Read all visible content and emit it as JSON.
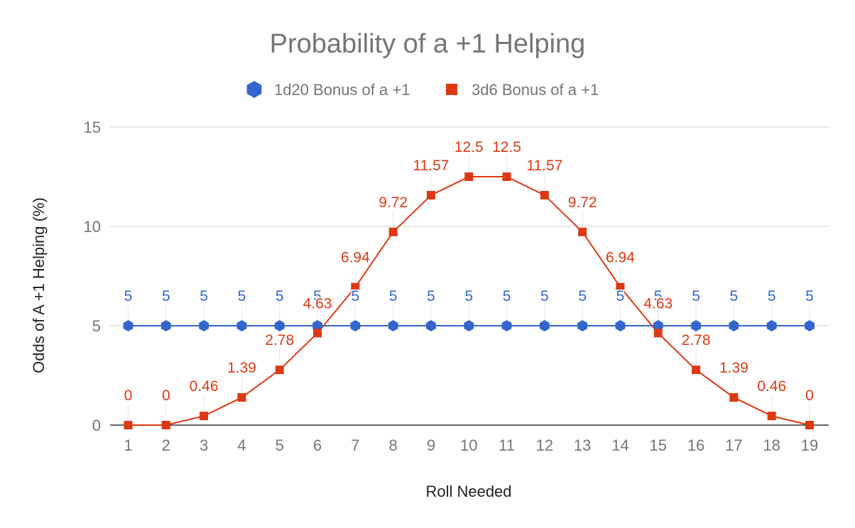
{
  "chart_data": {
    "type": "line",
    "title": "Probability of a +1 Helping",
    "xlabel": "Roll Needed",
    "ylabel": "Odds of A +1 Helping (%)",
    "ylim": [
      0,
      15
    ],
    "yticks": [
      0,
      5,
      10,
      15
    ],
    "grid": true,
    "legend_position": "top",
    "categories": [
      "1",
      "2",
      "3",
      "4",
      "5",
      "6",
      "7",
      "8",
      "9",
      "10",
      "11",
      "12",
      "13",
      "14",
      "15",
      "16",
      "17",
      "18",
      "19"
    ],
    "series": [
      {
        "name": "1d20 Bonus of a +1",
        "marker": "hexagon",
        "color": "#3366CC",
        "values": [
          5,
          5,
          5,
          5,
          5,
          5,
          5,
          5,
          5,
          5,
          5,
          5,
          5,
          5,
          5,
          5,
          5,
          5,
          5
        ],
        "labels": [
          "5",
          "5",
          "5",
          "5",
          "5",
          "5",
          "5",
          "5",
          "5",
          "5",
          "5",
          "5",
          "5",
          "5",
          "5",
          "5",
          "5",
          "5",
          "5"
        ]
      },
      {
        "name": "3d6 Bonus of a +1",
        "marker": "square",
        "color": "#DC3912",
        "values": [
          0,
          0,
          0.46,
          1.39,
          2.78,
          4.63,
          6.94,
          9.72,
          11.57,
          12.5,
          12.5,
          11.57,
          9.72,
          6.94,
          4.63,
          2.78,
          1.39,
          0.46,
          0
        ],
        "labels": [
          "0",
          "0",
          "0.46",
          "1.39",
          "2.78",
          "4.63",
          "6.94",
          "9.72",
          "11.57",
          "12.5",
          "12.5",
          "11.57",
          "9.72",
          "6.94",
          "4.63",
          "2.78",
          "1.39",
          "0.46",
          "0"
        ]
      }
    ]
  }
}
